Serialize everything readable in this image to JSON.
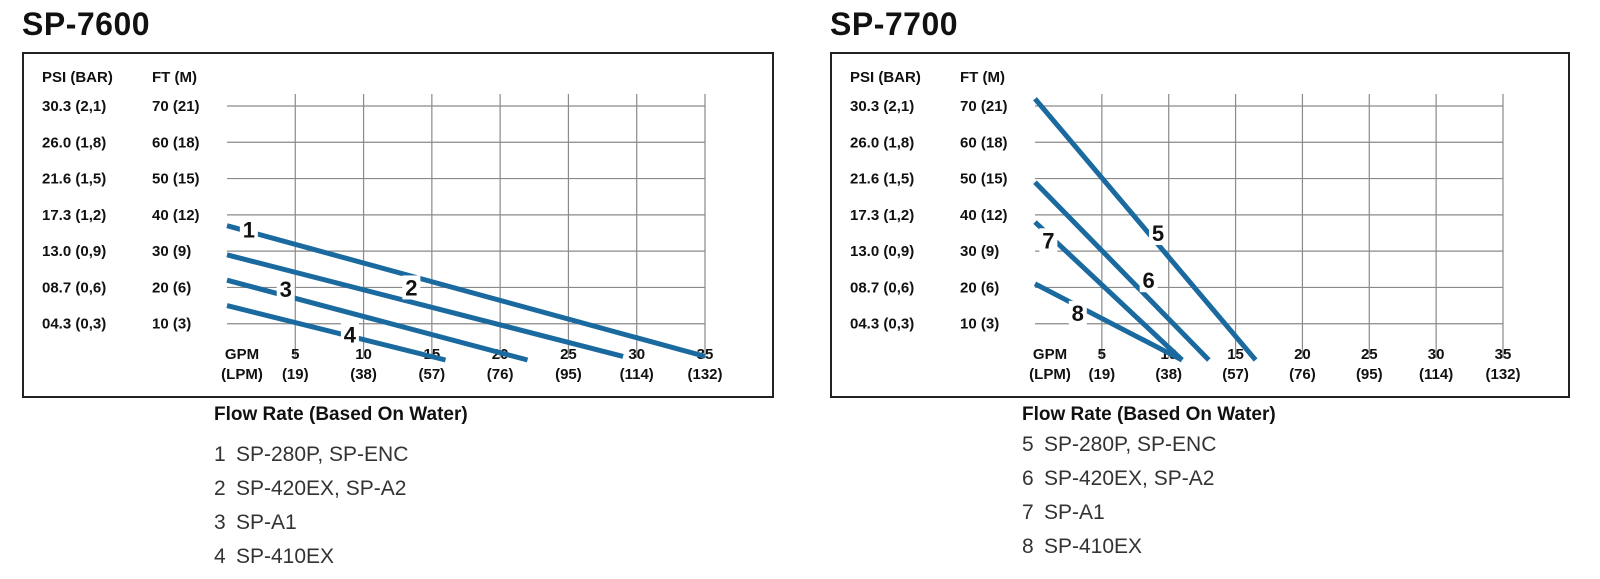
{
  "charts": [
    {
      "title": "SP-7600",
      "caption": "Flow Rate (Based On Water)",
      "legend": [
        {
          "num": "1",
          "label": "SP-280P, SP-ENC"
        },
        {
          "num": "2",
          "label": "SP-420EX, SP-A2"
        },
        {
          "num": "3",
          "label": "SP-A1"
        },
        {
          "num": "4",
          "label": "SP-410EX"
        }
      ]
    },
    {
      "title": "SP-7700",
      "caption": "Flow Rate (Based On Water)",
      "legend": [
        {
          "num": "5",
          "label": "SP-280P, SP-ENC"
        },
        {
          "num": "6",
          "label": "SP-420EX, SP-A2"
        },
        {
          "num": "7",
          "label": "SP-A1"
        },
        {
          "num": "8",
          "label": "SP-410EX"
        }
      ]
    }
  ],
  "chart_data": [
    {
      "type": "line",
      "title": "SP-7600",
      "xlabel": [
        "GPM",
        "(LPM)"
      ],
      "ylabel_psi": "PSI (BAR)",
      "ylabel_ft": "FT (M)",
      "x_ticks": [
        {
          "gpm": "5",
          "lpm": "(19)",
          "value": 5
        },
        {
          "gpm": "10",
          "lpm": "(38)",
          "value": 10
        },
        {
          "gpm": "15",
          "lpm": "(57)",
          "value": 15
        },
        {
          "gpm": "20",
          "lpm": "(76)",
          "value": 20
        },
        {
          "gpm": "25",
          "lpm": "(95)",
          "value": 25
        },
        {
          "gpm": "30",
          "lpm": "(114)",
          "value": 30
        },
        {
          "gpm": "35",
          "lpm": "(132)",
          "value": 35
        }
      ],
      "y_ticks": [
        {
          "psi": "30.3 (2,1)",
          "ft": "70 (21)",
          "value": 70
        },
        {
          "psi": "26.0 (1,8)",
          "ft": "60 (18)",
          "value": 60
        },
        {
          "psi": "21.6 (1,5)",
          "ft": "50 (15)",
          "value": 50
        },
        {
          "psi": "17.3 (1,2)",
          "ft": "40 (12)",
          "value": 40
        },
        {
          "psi": "13.0 (0,9)",
          "ft": "30 (9)",
          "value": 30
        },
        {
          "psi": "08.7 (0,6)",
          "ft": "20 (6)",
          "value": 20
        },
        {
          "psi": "04.3 (0,3)",
          "ft": "10 (3)",
          "value": 10
        }
      ],
      "xlim": [
        0,
        35
      ],
      "ylim": [
        0,
        70
      ],
      "grid": true,
      "line_color": "#1a6aa0",
      "series": [
        {
          "name": "1",
          "x": [
            0,
            35
          ],
          "y": [
            37,
            1
          ],
          "label_at": [
            1.6,
            36
          ]
        },
        {
          "name": "2",
          "x": [
            0,
            29
          ],
          "y": [
            29,
            1
          ],
          "label_at": [
            13.5,
            20
          ]
        },
        {
          "name": "3",
          "x": [
            0,
            22
          ],
          "y": [
            22,
            0
          ],
          "label_at": [
            4.3,
            19.5
          ]
        },
        {
          "name": "4",
          "x": [
            0,
            16
          ],
          "y": [
            15,
            0
          ],
          "label_at": [
            9,
            7
          ]
        }
      ]
    },
    {
      "type": "line",
      "title": "SP-7700",
      "xlabel": [
        "GPM",
        "(LPM)"
      ],
      "ylabel_psi": "PSI (BAR)",
      "ylabel_ft": "FT (M)",
      "x_ticks": [
        {
          "gpm": "5",
          "lpm": "(19)",
          "value": 5
        },
        {
          "gpm": "10",
          "lpm": "(38)",
          "value": 10
        },
        {
          "gpm": "15",
          "lpm": "(57)",
          "value": 15
        },
        {
          "gpm": "20",
          "lpm": "(76)",
          "value": 20
        },
        {
          "gpm": "25",
          "lpm": "(95)",
          "value": 25
        },
        {
          "gpm": "30",
          "lpm": "(114)",
          "value": 30
        },
        {
          "gpm": "35",
          "lpm": "(132)",
          "value": 35
        }
      ],
      "y_ticks": [
        {
          "psi": "30.3 (2,1)",
          "ft": "70 (21)",
          "value": 70
        },
        {
          "psi": "26.0 (1,8)",
          "ft": "60 (18)",
          "value": 60
        },
        {
          "psi": "21.6 (1,5)",
          "ft": "50 (15)",
          "value": 50
        },
        {
          "psi": "17.3 (1,2)",
          "ft": "40 (12)",
          "value": 40
        },
        {
          "psi": "13.0 (0,9)",
          "ft": "30 (9)",
          "value": 30
        },
        {
          "psi": "08.7 (0,6)",
          "ft": "20 (6)",
          "value": 20
        },
        {
          "psi": "04.3 (0,3)",
          "ft": "10 (3)",
          "value": 10
        }
      ],
      "xlim": [
        0,
        35
      ],
      "ylim": [
        0,
        70
      ],
      "grid": true,
      "line_color": "#1a6aa0",
      "series": [
        {
          "name": "5",
          "x": [
            0,
            16.5
          ],
          "y": [
            72,
            0
          ],
          "label_at": [
            9.2,
            35
          ]
        },
        {
          "name": "6",
          "x": [
            0,
            13
          ],
          "y": [
            49,
            0
          ],
          "label_at": [
            8.5,
            22
          ]
        },
        {
          "name": "7",
          "x": [
            0,
            11
          ],
          "y": [
            38,
            0
          ],
          "label_at": [
            1,
            33
          ]
        },
        {
          "name": "8",
          "x": [
            0,
            11
          ],
          "y": [
            21,
            0
          ],
          "label_at": [
            3.2,
            13
          ]
        }
      ]
    }
  ]
}
